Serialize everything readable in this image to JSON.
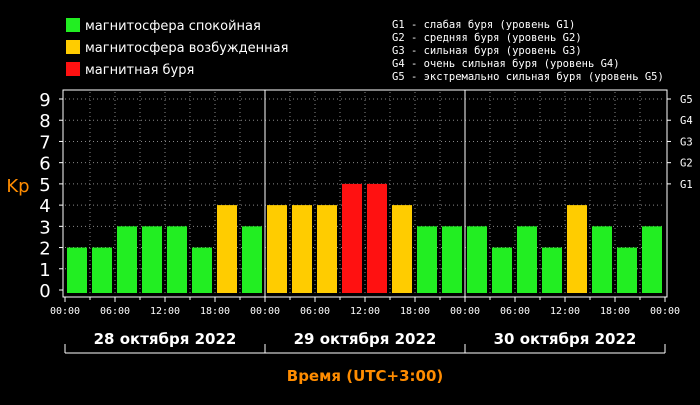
{
  "legend_left": [
    {
      "label": "магнитосфера спокойная",
      "color": "#22ee22"
    },
    {
      "label": "магнитосфера возбужденная",
      "color": "#ffcc00"
    },
    {
      "label": "магнитная буря",
      "color": "#ff1111"
    }
  ],
  "legend_right": [
    "G1 - слабая буря (уровень G1)",
    "G2 - средняя буря (уровень G2)",
    "G3 - сильная буря (уровень G3)",
    "G4 - очень сильная буря (уровень G4)",
    "G5 - экстремально сильная буря (уровень G5)"
  ],
  "colors": {
    "background": "#000000",
    "axis": "#ffffff",
    "title": "#ff8c00",
    "quiet": "#22ee22",
    "active": "#ffcc00",
    "storm": "#ff1111"
  },
  "chart_data": {
    "type": "bar",
    "ylabel": "Kp",
    "xlabel": "Время (UTC+3:00)",
    "ylim": [
      0,
      9
    ],
    "yticks": [
      "0",
      "1",
      "2",
      "3",
      "4",
      "5",
      "6",
      "7",
      "8",
      "9"
    ],
    "right_ticks": [
      {
        "label": "G1",
        "kp": 5
      },
      {
        "label": "G2",
        "kp": 6
      },
      {
        "label": "G3",
        "kp": 7
      },
      {
        "label": "G4",
        "kp": 8
      },
      {
        "label": "G5",
        "kp": 9
      }
    ],
    "time_ticks": [
      "00:00",
      "06:00",
      "12:00",
      "18:00"
    ],
    "end_tick": "00:00",
    "days": [
      {
        "date": "28 октября 2022",
        "values": [
          2,
          2,
          3,
          3,
          3,
          2,
          4,
          3
        ]
      },
      {
        "date": "29 октября 2022",
        "values": [
          4,
          4,
          4,
          5,
          5,
          4,
          3,
          3
        ]
      },
      {
        "date": "30 октября 2022",
        "values": [
          3,
          2,
          3,
          2,
          4,
          3,
          2,
          3
        ]
      }
    ]
  }
}
